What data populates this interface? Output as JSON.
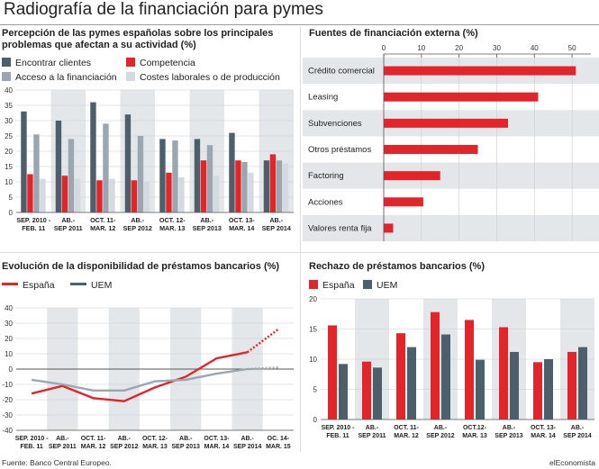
{
  "title": "Radiografía de la financiación para pymes",
  "source": "Fuente: Banco Central Europeo.",
  "brand": "elEconomista",
  "colors": {
    "red": "#e2242b",
    "dark": "#4d5f6b",
    "mid": "#9aa7b0",
    "light": "#d4dadf",
    "band": "#e4e7ea"
  },
  "chart_data": [
    {
      "type": "bar",
      "title": "Percepción de las pymes españolas sobre los principales problemas que afectan a su actividad (%)",
      "categories": [
        "SEP. 2010 - FEB. 11",
        "AB.-SEP 2011",
        "OCT. 11- MAR. 12",
        "AB.-SEP 2012",
        "OCT. 12- MAR. 13",
        "AB.-SEP 2013",
        "OCT. 13- MAR. 14",
        "AB.-SEP 2014"
      ],
      "series": [
        {
          "name": "Encontrar clientes",
          "values": [
            33,
            30,
            36,
            32,
            24,
            24,
            26,
            17
          ]
        },
        {
          "name": "Competencia",
          "values": [
            12.5,
            12,
            10.5,
            10.5,
            13,
            17,
            17,
            19
          ]
        },
        {
          "name": "Acceso a la financiación",
          "values": [
            25.5,
            24,
            29,
            25,
            23.5,
            22,
            16.5,
            17
          ]
        },
        {
          "name": "Costes laborales o de producción",
          "values": [
            11,
            11,
            11,
            10,
            11.5,
            12,
            13,
            16
          ]
        }
      ],
      "ylim": [
        0,
        40
      ],
      "yticks": [
        0,
        5,
        10,
        15,
        20,
        25,
        30,
        35,
        40
      ]
    },
    {
      "type": "bar",
      "orientation": "horizontal",
      "title": "Fuentes de financiación externa (%)",
      "categories": [
        "Crédito comercial",
        "Leasing",
        "Subvenciones",
        "Otros préstamos",
        "Factoring",
        "Acciones",
        "Valores renta fija"
      ],
      "values": [
        51,
        41,
        33,
        25,
        15,
        10.5,
        2.5
      ],
      "xlim": [
        0,
        55
      ],
      "xticks": [
        0,
        10,
        20,
        30,
        40,
        50
      ]
    },
    {
      "type": "line",
      "title": "Evolución de la disponibilidad de préstamos bancarios (%)",
      "categories": [
        "SEP. 2010 - FEB. 11",
        "AB.-SEP 2011",
        "OCT. 11- MAR. 12",
        "AB.-SEP 2012",
        "OCT. 12- MAR. 13",
        "AB.-SEP 2013",
        "OCT. 13- MAR. 14",
        "AB.-SEP 2014",
        "OC. 14- MAR. 15"
      ],
      "series": [
        {
          "name": "España",
          "values": [
            -16,
            -11,
            -19,
            -21,
            -12,
            -5,
            7,
            11,
            26
          ],
          "projected_from": 7
        },
        {
          "name": "UEM",
          "values": [
            -7,
            -10,
            -14,
            -14,
            -8,
            -7,
            -3,
            0,
            1
          ],
          "projected_from": 7
        }
      ],
      "ylim": [
        -40,
        40
      ],
      "yticks": [
        -40,
        -30,
        -20,
        -10,
        0,
        10,
        20,
        30,
        40
      ]
    },
    {
      "type": "bar",
      "title": "Rechazo de préstamos bancarios (%)",
      "categories": [
        "SEP. 2010 - FEB. 11",
        "AB.-SEP 2011",
        "OCT. 11- MAR. 12",
        "AB.-SEP 2012",
        "OCT.12- MAR. 13",
        "AB.-SEP 2013",
        "OCT. 13- MAR. 14",
        "AB.-SEP 2014"
      ],
      "series": [
        {
          "name": "España",
          "values": [
            15.6,
            9.6,
            14.3,
            17.8,
            16.5,
            15.3,
            9.5,
            11.2
          ]
        },
        {
          "name": "UEM",
          "values": [
            9.2,
            8.6,
            12,
            14.1,
            9.9,
            11.2,
            10,
            12
          ]
        }
      ],
      "ylim": [
        0,
        20
      ],
      "yticks": [
        0,
        5,
        10,
        15,
        20
      ]
    }
  ]
}
